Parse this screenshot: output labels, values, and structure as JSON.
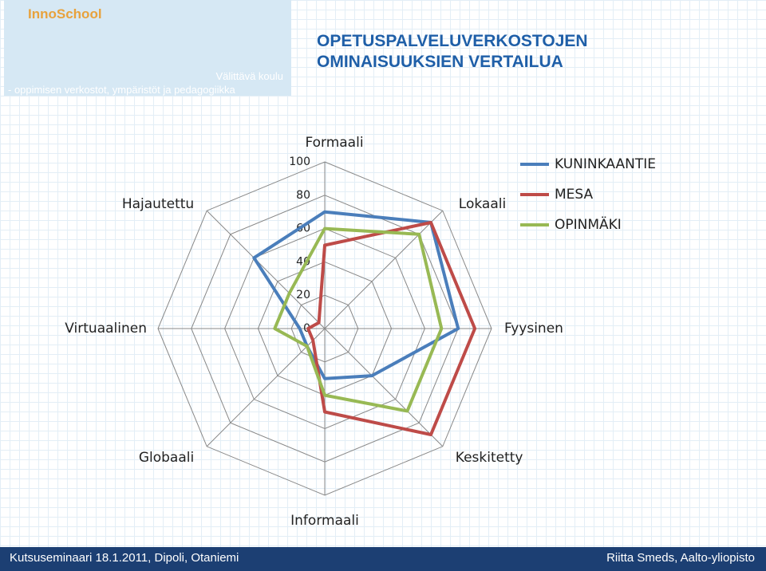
{
  "header": {
    "logo": "InnoSchool",
    "subtitle_1": "Välittävä koulu",
    "subtitle_2": "- oppimisen verkostot, ympäristöt ja pedagogiikka",
    "title_1": "OPETUSPALVELUVERKOSTOJEN",
    "title_2": "OMINAISUUKSIEN VERTAILUA"
  },
  "chart_data": {
    "type": "radar",
    "categories": [
      "Formaali",
      "Lokaali",
      "Fyysinen",
      "Keskitetty",
      "Informaali",
      "Globaali",
      "Virtuaalinen",
      "Hajautettu"
    ],
    "series": [
      {
        "name": "KUNINKAANTIE",
        "color": "#4a7ebb",
        "values": [
          70,
          90,
          80,
          40,
          30,
          15,
          15,
          60
        ]
      },
      {
        "name": "MESA",
        "color": "#be4b48",
        "values": [
          50,
          90,
          90,
          90,
          50,
          10,
          10,
          5
        ]
      },
      {
        "name": "OPINMÄKI",
        "color": "#98b954",
        "values": [
          60,
          80,
          70,
          70,
          40,
          15,
          30,
          30
        ]
      }
    ],
    "ylim": [
      0,
      100
    ],
    "yticks": [
      0,
      20,
      40,
      60,
      80,
      100
    ],
    "grid": true,
    "legend": "top-right"
  },
  "footer": {
    "left": "Kutsuseminaari 18.1.2011, Dipoli, Otaniemi",
    "right": "Riitta Smeds, Aalto-yliopisto"
  }
}
